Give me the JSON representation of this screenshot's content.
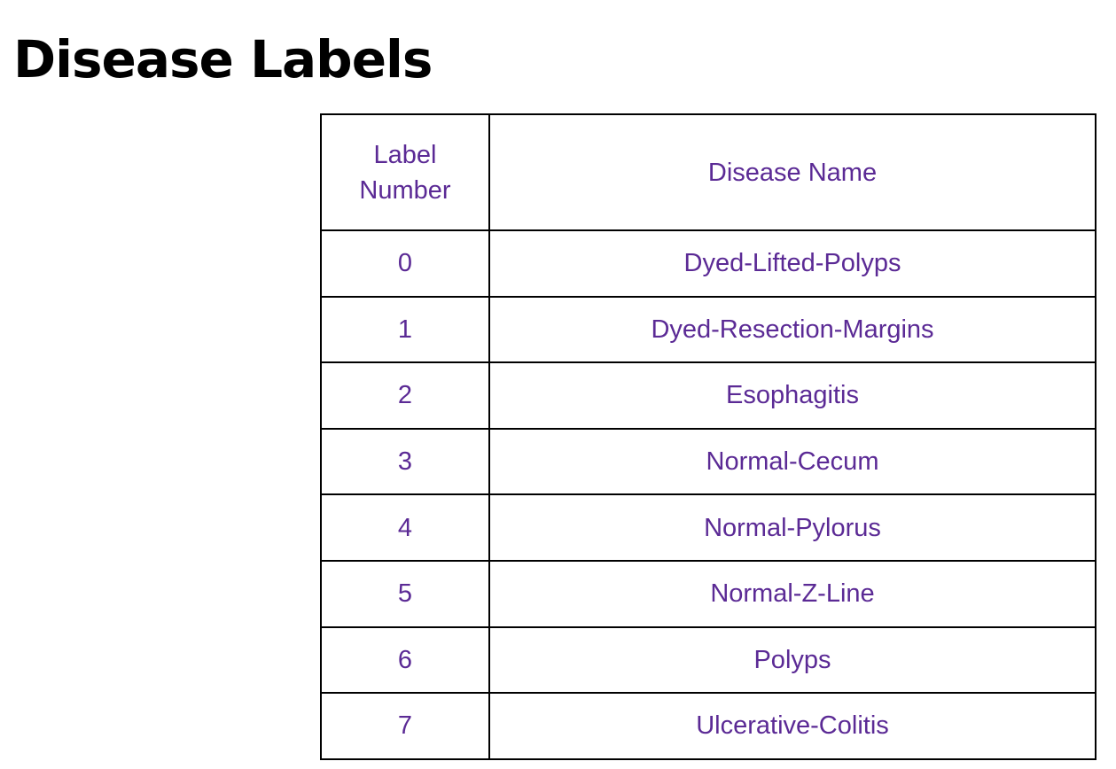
{
  "page": {
    "title": "Disease Labels"
  },
  "table": {
    "headers": {
      "label_number": "Label Number",
      "disease_name": "Disease Name"
    },
    "rows": [
      {
        "label_number": "0",
        "disease_name": "Dyed-Lifted-Polyps"
      },
      {
        "label_number": "1",
        "disease_name": "Dyed-Resection-Margins"
      },
      {
        "label_number": "2",
        "disease_name": "Esophagitis"
      },
      {
        "label_number": "3",
        "disease_name": "Normal-Cecum"
      },
      {
        "label_number": "4",
        "disease_name": "Normal-Pylorus"
      },
      {
        "label_number": "5",
        "disease_name": "Normal-Z-Line"
      },
      {
        "label_number": "6",
        "disease_name": "Polyps"
      },
      {
        "label_number": "7",
        "disease_name": "Ulcerative-Colitis"
      }
    ]
  },
  "colors": {
    "text_accent": "#5b2a95",
    "title": "#000000",
    "border": "#000000"
  }
}
